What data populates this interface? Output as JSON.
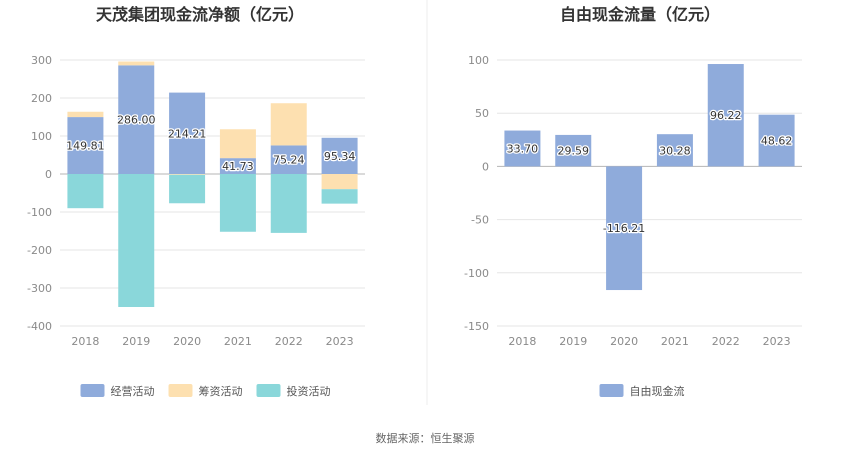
{
  "chart_data": [
    {
      "type": "bar",
      "stacked": true,
      "title": "天茂集团现金流净额（亿元）",
      "categories": [
        "2018",
        "2019",
        "2020",
        "2021",
        "2022",
        "2023"
      ],
      "series": [
        {
          "name": "经营活动",
          "color": "#8fabdb",
          "values": [
            149.81,
            286.0,
            214.21,
            41.73,
            75.24,
            95.34
          ]
        },
        {
          "name": "筹资活动",
          "color": "#fde0b0",
          "values": [
            14,
            10,
            -2,
            76,
            111,
            -40
          ]
        },
        {
          "name": "投资活动",
          "color": "#8ad7da",
          "values": [
            -90,
            -350,
            -75,
            -152,
            -155,
            -38
          ]
        }
      ],
      "data_labels": [
        "149.81",
        "286.00",
        "214.21",
        "41.73",
        "75.24",
        "95.34"
      ],
      "ylim": [
        -400,
        300
      ],
      "yticks": [
        300,
        200,
        100,
        0,
        -100,
        -200,
        -300,
        -400
      ],
      "legend_position": "bottom",
      "grid": true
    },
    {
      "type": "bar",
      "title": "自由现金流量（亿元）",
      "categories": [
        "2018",
        "2019",
        "2020",
        "2021",
        "2022",
        "2023"
      ],
      "series": [
        {
          "name": "自由现金流",
          "color": "#8fabdb",
          "values": [
            33.7,
            29.59,
            -116.21,
            30.28,
            96.22,
            48.62
          ]
        }
      ],
      "data_labels": [
        "33.70",
        "29.59",
        "-116.21",
        "30.28",
        "96.22",
        "48.62"
      ],
      "ylim": [
        -150,
        100
      ],
      "yticks": [
        100,
        50,
        0,
        -50,
        -100,
        -150
      ],
      "legend_position": "bottom",
      "grid": true
    }
  ],
  "source": "数据来源：恒生聚源"
}
